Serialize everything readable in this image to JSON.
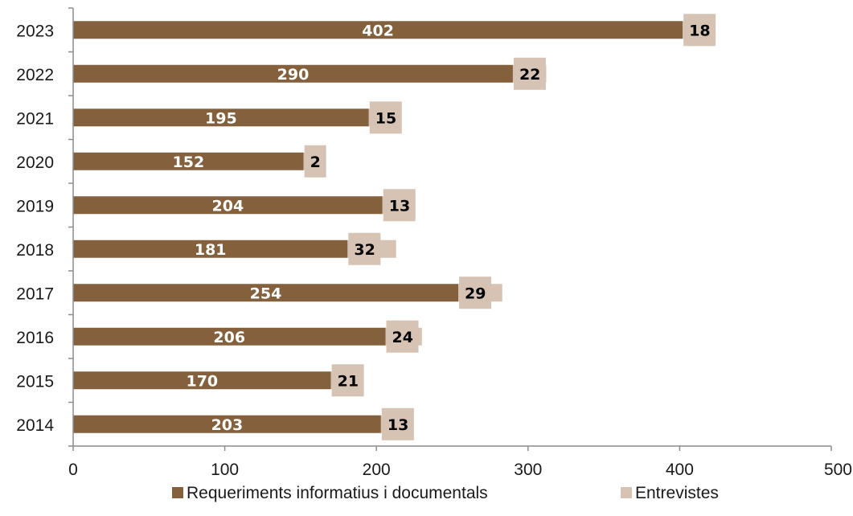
{
  "chart_data": {
    "type": "bar",
    "orientation": "horizontal",
    "stacked": true,
    "categories": [
      "2014",
      "2015",
      "2016",
      "2017",
      "2018",
      "2019",
      "2020",
      "2021",
      "2022",
      "2023"
    ],
    "series": [
      {
        "name": "Requeriments informatius i documentals",
        "color": "#84603d",
        "values": [
          203,
          170,
          206,
          254,
          181,
          204,
          152,
          195,
          290,
          402
        ]
      },
      {
        "name": "Entrevistes",
        "color": "#d6c3b4",
        "values": [
          13,
          21,
          24,
          29,
          32,
          13,
          2,
          15,
          22,
          18
        ]
      }
    ],
    "title": "",
    "xlabel": "",
    "ylabel": "",
    "xlim": [
      0,
      500
    ],
    "x_ticks": [
      0,
      100,
      200,
      300,
      400,
      500
    ],
    "grid": false,
    "legend_position": "bottom"
  }
}
